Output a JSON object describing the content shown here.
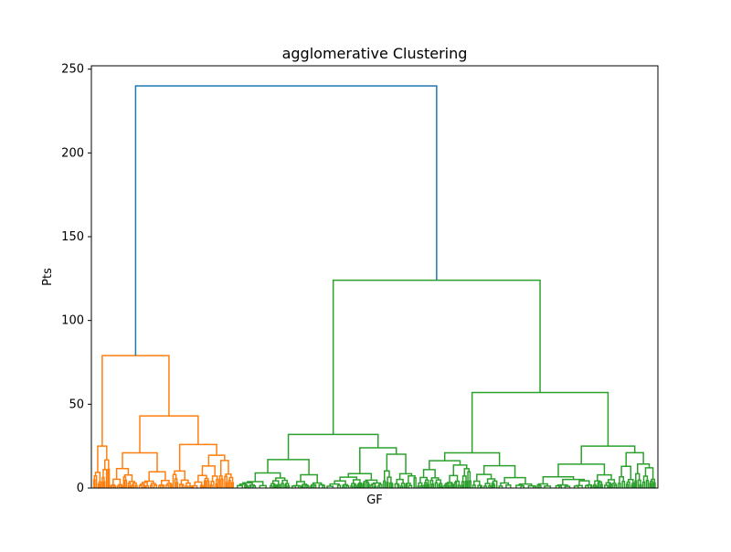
{
  "chart_data": {
    "type": "dendrogram",
    "title": "agglomerative Clustering",
    "xlabel": "GF",
    "ylabel": "Pts",
    "ylim": [
      0,
      252
    ],
    "yticks": [
      0,
      50,
      100,
      150,
      200,
      250
    ],
    "grid": false,
    "colors": {
      "root": "#1f77b4",
      "cluster_1": "#ff7f0e",
      "cluster_2": "#2ca02c"
    },
    "merges": [
      {
        "id": "root",
        "height": 240,
        "color": "#1f77b4",
        "children": [
          "orange-top",
          "green-top"
        ]
      },
      {
        "id": "orange-top",
        "height": 79,
        "color": "#ff7f0e",
        "children": [
          "o-left",
          "o-right"
        ]
      },
      {
        "id": "o-left",
        "height": 25,
        "color": "#ff7f0e",
        "children": []
      },
      {
        "id": "o-right",
        "height": 43,
        "color": "#ff7f0e",
        "children": [
          "o-r1",
          "o-r2"
        ]
      },
      {
        "id": "o-r1",
        "height": 21,
        "color": "#ff7f0e",
        "children": []
      },
      {
        "id": "o-r2",
        "height": 26,
        "color": "#ff7f0e",
        "children": []
      },
      {
        "id": "green-top",
        "height": 124,
        "color": "#2ca02c",
        "children": [
          "g-left",
          "g-right"
        ]
      },
      {
        "id": "g-left",
        "height": 32,
        "color": "#2ca02c",
        "children": [
          "g-l1",
          "g-l2"
        ]
      },
      {
        "id": "g-l1",
        "height": 17,
        "color": "#2ca02c",
        "children": []
      },
      {
        "id": "g-l2",
        "height": 24,
        "color": "#2ca02c",
        "children": []
      },
      {
        "id": "g-right",
        "height": 57,
        "color": "#2ca02c",
        "children": [
          "g-r1",
          "g-r2"
        ]
      },
      {
        "id": "g-r1",
        "height": 21,
        "color": "#2ca02c",
        "children": []
      },
      {
        "id": "g-r2",
        "height": 25,
        "color": "#2ca02c",
        "children": []
      }
    ]
  }
}
